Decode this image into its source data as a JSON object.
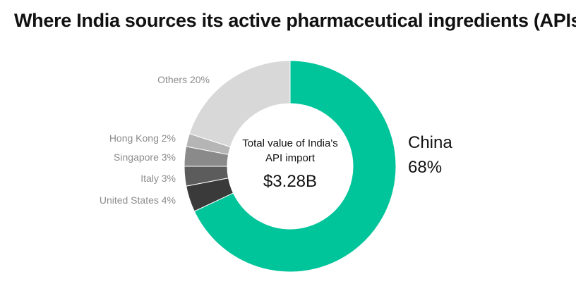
{
  "chart_data": {
    "type": "pie",
    "title": "Where India sources its active pharmaceutical ingredients (APIs)",
    "center_caption": [
      "Total value of India's",
      "API import"
    ],
    "center_value": "$3.28B",
    "slices": [
      {
        "label": "China",
        "value": 68,
        "display": "68%",
        "color": "#00c49a"
      },
      {
        "label": "United States",
        "value": 4,
        "display": "United States 4%",
        "color": "#3a3a3a"
      },
      {
        "label": "Italy",
        "value": 3,
        "display": "Italy 3%",
        "color": "#5c5c5c"
      },
      {
        "label": "Singapore",
        "value": 3,
        "display": "Singapore 3%",
        "color": "#8a8a8a"
      },
      {
        "label": "Hong Kong",
        "value": 2,
        "display": "Hong Kong 2%",
        "color": "#b5b5b5"
      },
      {
        "label": "Others",
        "value": 20,
        "display": "Others 20%",
        "color": "#d8d8d8"
      }
    ],
    "legend": "none"
  }
}
